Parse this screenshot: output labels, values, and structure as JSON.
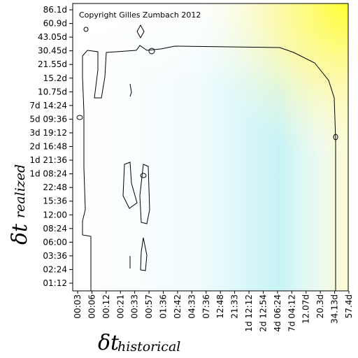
{
  "chart_data": {
    "type": "contour",
    "annotation": "Copyright Gilles Zumbach 2012",
    "x_label": "δt",
    "x_label_sub": "historical",
    "y_label": "δt",
    "y_label_sub": "realized",
    "x_categories": [
      "00:03",
      "00:06",
      "00:12",
      "00:21",
      "00:33",
      "00:57",
      "01:36",
      "02:42",
      "04:33",
      "07:36",
      "12:48",
      "21:33",
      "1d 12:12",
      "2d 12:54",
      "4d 06:24",
      "7d 04:12",
      "12.07d",
      "20.3d",
      "34.13d",
      "57.4d"
    ],
    "y_categories": [
      "01:12",
      "02:24",
      "03:36",
      "06:00",
      "08:24",
      "12:00",
      "15:36",
      "22:48",
      "1d 08:24",
      "1d 21:36",
      "2d 16:48",
      "3d 19:12",
      "5d 09:36",
      "7d 14:24",
      "10.75d",
      "15.2d",
      "21.55d",
      "30.45d",
      "43.05d",
      "60.9d",
      "86.1d"
    ]
  }
}
